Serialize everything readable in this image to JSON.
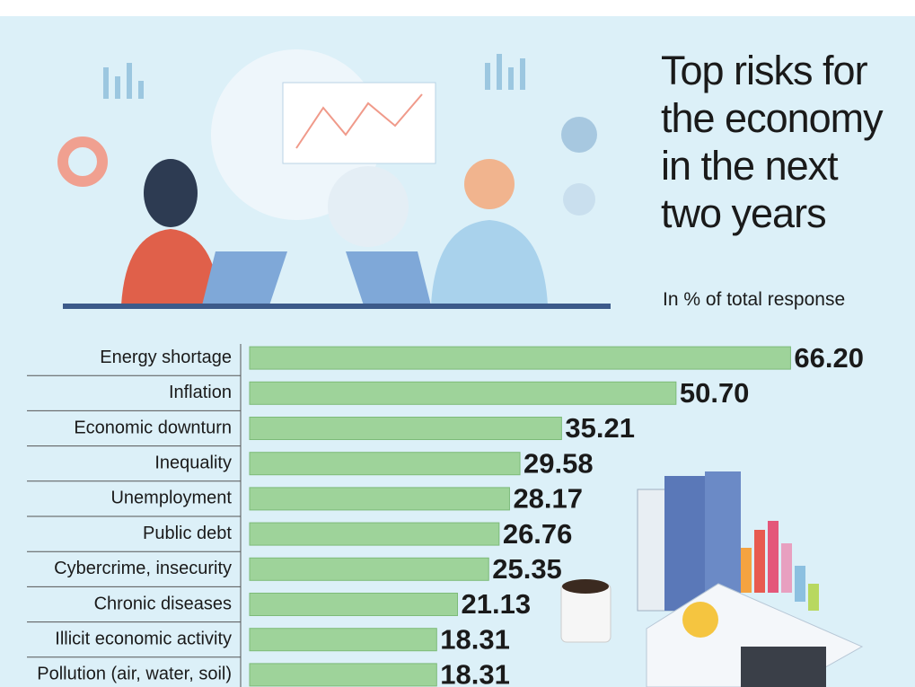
{
  "chart_data": {
    "type": "bar",
    "orientation": "horizontal",
    "title": "Top risks for the economy in the next two years",
    "subtitle": "In % of total response",
    "categories": [
      "Energy shortage",
      "Inflation",
      "Economic downturn",
      "Inequality",
      "Unemployment",
      "Public debt",
      "Cybercrime, insecurity",
      "Chronic diseases",
      "Illicit economic activity",
      "Pollution (air, water, soil)"
    ],
    "values": [
      66.2,
      50.7,
      35.21,
      29.58,
      28.17,
      26.76,
      25.35,
      21.13,
      18.31,
      18.31
    ],
    "value_labels": [
      "66.20",
      "50.70",
      "35.21",
      "29.58",
      "28.17",
      "26.76",
      "25.35",
      "21.13",
      "18.31",
      "18.31"
    ],
    "color": "#9ed39a",
    "xlim": [
      -7,
      67
    ]
  }
}
